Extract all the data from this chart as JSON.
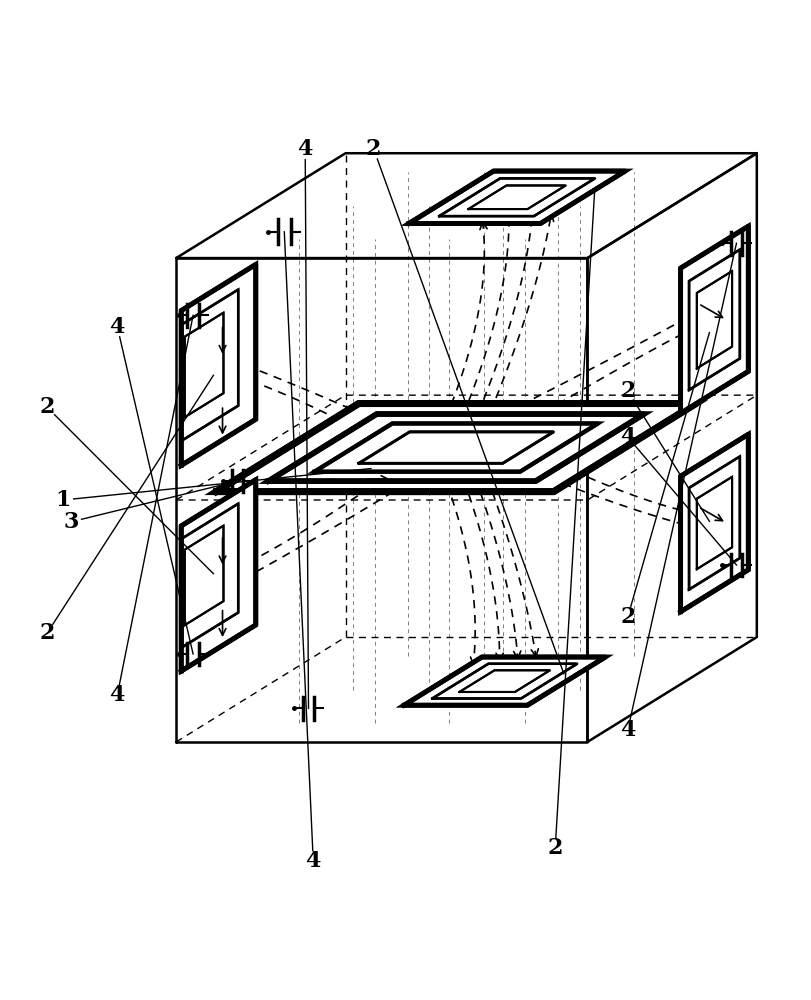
{
  "bg_color": "#ffffff",
  "line_color": "#000000",
  "fig_width": 8.12,
  "fig_height": 10.0,
  "ox": 0.47,
  "oy": 0.5,
  "sx": 0.255,
  "sy": 0.3,
  "dsx": 0.21,
  "dsy": 0.13,
  "lw_cube": 1.8,
  "lw_coil_thick": 4.5,
  "lw_coil_med": 2.0,
  "lw_recv_thick": 3.5,
  "lw_recv_thin": 1.5,
  "lw_field": 1.3,
  "lw_label_line": 1.0,
  "label_fontsize": 16,
  "dash_pattern": [
    5,
    4
  ]
}
